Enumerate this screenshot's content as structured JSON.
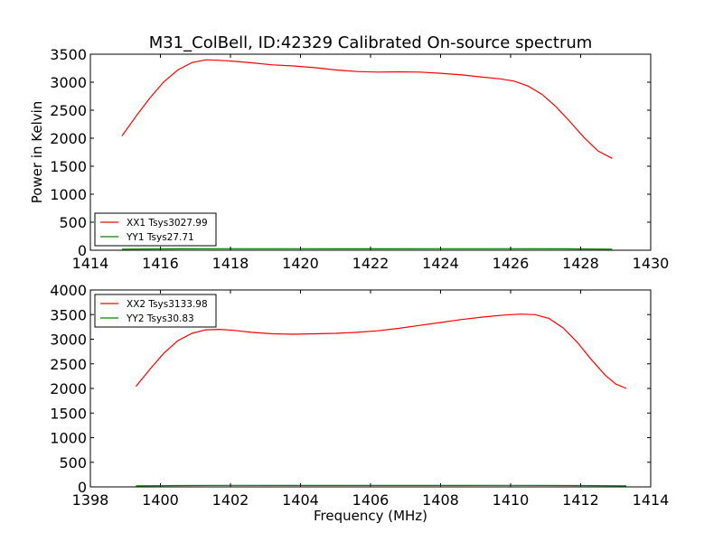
{
  "title": "M31_ColBell, ID:42329 Calibrated On-source spectrum",
  "chart_data": [
    {
      "type": "line",
      "ylabel": "Power in Kelvin",
      "xlabel": "",
      "xlim": [
        1414,
        1430
      ],
      "ylim": [
        0,
        3500
      ],
      "xticks": [
        1414,
        1416,
        1418,
        1420,
        1422,
        1424,
        1426,
        1428,
        1430
      ],
      "yticks": [
        0,
        500,
        1000,
        1500,
        2000,
        2500,
        3000,
        3500
      ],
      "legend_position": "lower-left",
      "series": [
        {
          "name": "XX1 Tsys3027.99",
          "color": "#ff0000",
          "x": [
            1414.9,
            1415.3,
            1415.7,
            1416.1,
            1416.5,
            1416.9,
            1417.3,
            1417.7,
            1418.2,
            1418.7,
            1419.2,
            1419.8,
            1420.4,
            1421.0,
            1421.6,
            1422.2,
            1422.8,
            1423.4,
            1424.0,
            1424.6,
            1425.2,
            1425.7,
            1426.1,
            1426.5,
            1426.9,
            1427.3,
            1427.7,
            1428.1,
            1428.5,
            1428.9
          ],
          "y": [
            2040,
            2390,
            2720,
            3010,
            3220,
            3350,
            3400,
            3390,
            3370,
            3340,
            3310,
            3290,
            3260,
            3220,
            3190,
            3180,
            3185,
            3180,
            3160,
            3130,
            3090,
            3060,
            3020,
            2930,
            2780,
            2560,
            2290,
            2010,
            1770,
            1640
          ]
        },
        {
          "name": "YY1 Tsys27.71",
          "color": "#008000",
          "x": [
            1414.9,
            1416.5,
            1418.0,
            1420.0,
            1422.0,
            1424.0,
            1426.0,
            1427.5,
            1428.9
          ],
          "y": [
            20,
            26,
            28,
            27,
            26,
            27,
            28,
            26,
            20
          ]
        }
      ]
    },
    {
      "type": "line",
      "ylabel": "",
      "xlabel": "Frequency (MHz)",
      "xlim": [
        1398,
        1414
      ],
      "ylim": [
        0,
        4000
      ],
      "xticks": [
        1398,
        1400,
        1402,
        1404,
        1406,
        1408,
        1410,
        1412,
        1414
      ],
      "yticks": [
        0,
        500,
        1000,
        1500,
        2000,
        2500,
        3000,
        3500,
        4000
      ],
      "legend_position": "upper-left",
      "series": [
        {
          "name": "XX2 Tsys3133.98",
          "color": "#ff0000",
          "x": [
            1399.3,
            1399.7,
            1400.1,
            1400.5,
            1400.9,
            1401.3,
            1401.7,
            1402.1,
            1402.6,
            1403.2,
            1403.8,
            1404.4,
            1405.0,
            1405.6,
            1406.2,
            1406.8,
            1407.4,
            1408.0,
            1408.6,
            1409.2,
            1409.8,
            1410.3,
            1410.7,
            1411.1,
            1411.5,
            1411.9,
            1412.3,
            1412.7,
            1413.0,
            1413.3
          ],
          "y": [
            2040,
            2390,
            2720,
            2970,
            3120,
            3190,
            3200,
            3180,
            3140,
            3110,
            3100,
            3110,
            3120,
            3140,
            3170,
            3220,
            3280,
            3340,
            3400,
            3450,
            3490,
            3510,
            3500,
            3420,
            3230,
            2940,
            2590,
            2270,
            2090,
            2000
          ]
        },
        {
          "name": "YY2 Tsys30.83",
          "color": "#008000",
          "x": [
            1399.3,
            1400.5,
            1402.0,
            1404.0,
            1406.0,
            1408.0,
            1410.0,
            1412.0,
            1413.3
          ],
          "y": [
            20,
            28,
            31,
            30,
            29,
            30,
            31,
            28,
            20
          ]
        }
      ]
    }
  ]
}
